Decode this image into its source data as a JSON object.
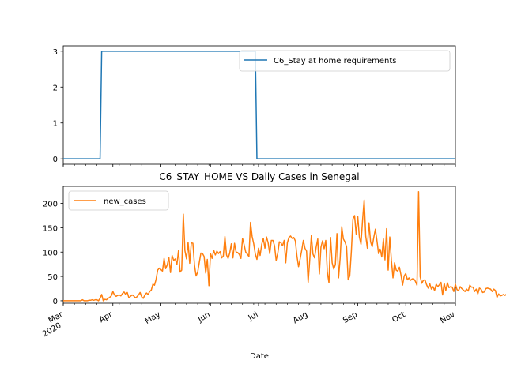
{
  "chart_data": [
    {
      "type": "line",
      "title": "",
      "xlabel": "",
      "ylabel": "",
      "ylim": [
        -0.15,
        3.15
      ],
      "yticks": [
        0,
        1,
        2,
        3
      ],
      "legend": {
        "placement": "upper-right",
        "entries": [
          "C6_Stay at home requirements"
        ]
      },
      "series": [
        {
          "name": "C6_Stay at home requirements",
          "color": "#1f77b4",
          "points": [
            [
              "2020-03-01",
              0
            ],
            [
              "2020-03-24",
              0
            ],
            [
              "2020-03-25",
              3
            ],
            [
              "2020-06-29",
              3
            ],
            [
              "2020-06-30",
              0
            ],
            [
              "2020-11-01",
              0
            ]
          ]
        }
      ]
    },
    {
      "type": "line",
      "title": "C6_STAY_HOME VS Daily Cases in Senegal",
      "xlabel": "Date",
      "ylabel": "",
      "ylim": [
        -5,
        235
      ],
      "yticks": [
        0,
        50,
        100,
        150,
        200
      ],
      "xticks": [
        {
          "date": "2020-03-01",
          "label": "Mar",
          "sublabel": "2020"
        },
        {
          "date": "2020-04-01",
          "label": "Apr"
        },
        {
          "date": "2020-05-01",
          "label": "May"
        },
        {
          "date": "2020-06-01",
          "label": "Jun"
        },
        {
          "date": "2020-07-01",
          "label": "Jul"
        },
        {
          "date": "2020-08-01",
          "label": "Aug"
        },
        {
          "date": "2020-09-01",
          "label": "Sep"
        },
        {
          "date": "2020-10-01",
          "label": "Oct"
        },
        {
          "date": "2020-11-01",
          "label": "Nov"
        }
      ],
      "legend": {
        "placement": "upper-left",
        "entries": [
          "new_cases"
        ]
      },
      "series": [
        {
          "name": "new_cases",
          "color": "#ff7f0e",
          "start_date": "2020-03-01",
          "values": [
            0,
            0,
            0,
            0,
            0,
            0,
            0,
            0,
            0,
            0,
            0,
            0,
            2,
            0,
            0,
            0,
            1,
            1,
            2,
            1,
            2,
            2,
            0,
            5,
            13,
            0,
            3,
            2,
            5,
            7,
            10,
            19,
            12,
            9,
            11,
            12,
            10,
            15,
            18,
            13,
            17,
            6,
            9,
            12,
            10,
            6,
            8,
            12,
            17,
            8,
            5,
            12,
            16,
            13,
            19,
            22,
            34,
            32,
            44,
            63,
            67,
            64,
            61,
            87,
            66,
            74,
            89,
            58,
            93,
            83,
            86,
            74,
            103,
            59,
            63,
            178,
            103,
            86,
            120,
            77,
            119,
            118,
            73,
            51,
            59,
            79,
            98,
            97,
            91,
            57,
            85,
            31,
            97,
            87,
            104,
            94,
            102,
            97,
            101,
            88,
            92,
            132,
            94,
            87,
            98,
            117,
            88,
            118,
            100,
            99,
            95,
            87,
            128,
            115,
            100,
            96,
            91,
            161,
            132,
            117,
            96,
            85,
            108,
            93,
            116,
            128,
            108,
            131,
            119,
            97,
            124,
            124,
            113,
            83,
            97,
            121,
            119,
            113,
            124,
            78,
            119,
            130,
            133,
            128,
            130,
            123,
            92,
            70,
            86,
            104,
            124,
            108,
            102,
            38,
            84,
            134,
            96,
            88,
            110,
            127,
            55,
            110,
            123,
            107,
            124,
            58,
            37,
            130,
            78,
            65,
            74,
            138,
            47,
            88,
            152,
            127,
            121,
            111,
            43,
            51,
            102,
            168,
            175,
            137,
            173,
            131,
            116,
            166,
            207,
            132,
            108,
            160,
            121,
            111,
            130,
            147,
            123,
            97,
            106,
            90,
            127,
            84,
            148,
            63,
            131,
            83,
            47,
            78,
            63,
            61,
            69,
            53,
            32,
            51,
            56,
            43,
            47,
            42,
            45,
            45,
            40,
            32,
            224,
            49,
            36,
            42,
            43,
            33,
            26,
            35,
            24,
            29,
            21,
            34,
            29,
            33,
            38,
            12,
            36,
            21,
            37,
            27,
            29,
            28,
            19,
            34,
            23,
            21,
            29,
            25,
            22,
            19,
            24,
            20,
            32,
            28,
            28,
            19,
            24,
            14,
            26,
            24,
            17,
            18,
            25,
            26,
            25,
            24,
            19,
            24,
            21,
            7,
            14,
            10,
            11,
            13,
            11,
            14
          ]
        }
      ]
    }
  ]
}
